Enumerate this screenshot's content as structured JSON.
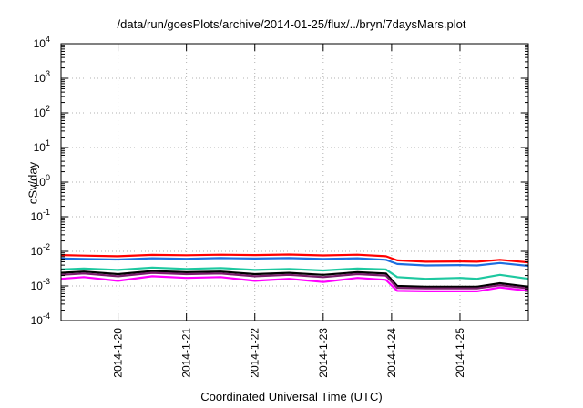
{
  "chart_data": {
    "type": "line",
    "title": "/data/run/goesPlots/archive/2014-01-25/flux/../bryn/7daysMars.plot",
    "xlabel": "Coordinated Universal Time (UTC)",
    "ylabel": "cSv/day",
    "yscale": "log",
    "ylim": [
      0.0001,
      10000
    ],
    "xlim": [
      "2014-01-19T04:00",
      "2014-01-25T23:59"
    ],
    "x_tick_labels": [
      "2014-1-20",
      "2014-1-21",
      "2014-1-22",
      "2014-1-23",
      "2014-1-24",
      "2014-1-25"
    ],
    "y_tick_labels": [
      {
        "base": "10",
        "exp": "-4"
      },
      {
        "base": "10",
        "exp": "-3"
      },
      {
        "base": "10",
        "exp": "-2"
      },
      {
        "base": "10",
        "exp": "-1"
      },
      {
        "base": "10",
        "exp": "0"
      },
      {
        "base": "10",
        "exp": "1"
      },
      {
        "base": "10",
        "exp": "2"
      },
      {
        "base": "10",
        "exp": "3"
      },
      {
        "base": "10",
        "exp": "4"
      }
    ],
    "grid": true,
    "legend": "none",
    "series": [
      {
        "color": "#ff0000",
        "x": [
          "2014-01-19T04:00",
          "2014-01-19T12:00",
          "2014-01-20T00:00",
          "2014-01-20T12:00",
          "2014-01-21T00:00",
          "2014-01-21T12:00",
          "2014-01-22T00:00",
          "2014-01-22T12:00",
          "2014-01-23T00:00",
          "2014-01-23T12:00",
          "2014-01-23T22:00",
          "2014-01-24T02:00",
          "2014-01-24T12:00",
          "2014-01-25T00:00",
          "2014-01-25T06:00",
          "2014-01-25T14:00",
          "2014-01-25T23:59"
        ],
        "values": [
          0.0078,
          0.0075,
          0.0072,
          0.0079,
          0.0077,
          0.008,
          0.0078,
          0.0081,
          0.0076,
          0.008,
          0.0072,
          0.0055,
          0.005,
          0.0051,
          0.005,
          0.0057,
          0.0048
        ]
      },
      {
        "color": "#1f6fe0",
        "x": [
          "2014-01-19T04:00",
          "2014-01-19T12:00",
          "2014-01-20T00:00",
          "2014-01-20T12:00",
          "2014-01-21T00:00",
          "2014-01-21T12:00",
          "2014-01-22T00:00",
          "2014-01-22T12:00",
          "2014-01-23T00:00",
          "2014-01-23T12:00",
          "2014-01-23T22:00",
          "2014-01-24T02:00",
          "2014-01-24T12:00",
          "2014-01-25T00:00",
          "2014-01-25T06:00",
          "2014-01-25T14:00",
          "2014-01-25T23:59"
        ],
        "values": [
          0.0062,
          0.006,
          0.0058,
          0.0063,
          0.0061,
          0.0064,
          0.0062,
          0.0064,
          0.006,
          0.0063,
          0.0057,
          0.0043,
          0.0039,
          0.004,
          0.0039,
          0.0046,
          0.0038
        ]
      },
      {
        "color": "#1ec8a0",
        "x": [
          "2014-01-19T04:00",
          "2014-01-19T12:00",
          "2014-01-20T00:00",
          "2014-01-20T12:00",
          "2014-01-21T00:00",
          "2014-01-21T12:00",
          "2014-01-22T00:00",
          "2014-01-22T12:00",
          "2014-01-23T00:00",
          "2014-01-23T12:00",
          "2014-01-23T22:00",
          "2014-01-24T02:00",
          "2014-01-24T12:00",
          "2014-01-25T00:00",
          "2014-01-25T06:00",
          "2014-01-25T14:00",
          "2014-01-25T23:59"
        ],
        "values": [
          0.003,
          0.0032,
          0.0029,
          0.0034,
          0.0031,
          0.0033,
          0.0029,
          0.0031,
          0.0028,
          0.0032,
          0.003,
          0.0018,
          0.0016,
          0.0017,
          0.0016,
          0.0021,
          0.0016
        ]
      },
      {
        "color": "#000000",
        "x": [
          "2014-01-19T04:00",
          "2014-01-19T12:00",
          "2014-01-20T00:00",
          "2014-01-20T12:00",
          "2014-01-21T00:00",
          "2014-01-21T12:00",
          "2014-01-22T00:00",
          "2014-01-22T12:00",
          "2014-01-23T00:00",
          "2014-01-23T12:00",
          "2014-01-23T22:00",
          "2014-01-24T02:00",
          "2014-01-24T12:00",
          "2014-01-25T00:00",
          "2014-01-25T06:00",
          "2014-01-25T14:00",
          "2014-01-25T23:59"
        ],
        "values": [
          0.0024,
          0.0026,
          0.0022,
          0.0027,
          0.0025,
          0.0026,
          0.0022,
          0.0024,
          0.0021,
          0.0025,
          0.0023,
          0.001,
          0.00095,
          0.00095,
          0.00095,
          0.0012,
          0.00095
        ]
      },
      {
        "color": "#7a1e6c",
        "x": [
          "2014-01-19T04:00",
          "2014-01-19T12:00",
          "2014-01-20T00:00",
          "2014-01-20T12:00",
          "2014-01-21T00:00",
          "2014-01-21T12:00",
          "2014-01-22T00:00",
          "2014-01-22T12:00",
          "2014-01-23T00:00",
          "2014-01-23T12:00",
          "2014-01-23T22:00",
          "2014-01-24T02:00",
          "2014-01-24T12:00",
          "2014-01-25T00:00",
          "2014-01-25T06:00",
          "2014-01-25T14:00",
          "2014-01-25T23:59"
        ],
        "values": [
          0.0021,
          0.0023,
          0.0019,
          0.0024,
          0.0022,
          0.0023,
          0.0019,
          0.0021,
          0.0018,
          0.0022,
          0.002,
          0.00088,
          0.00085,
          0.00085,
          0.00085,
          0.00105,
          0.00085
        ]
      },
      {
        "color": "#ff00ff",
        "x": [
          "2014-01-19T04:00",
          "2014-01-19T12:00",
          "2014-01-20T00:00",
          "2014-01-20T12:00",
          "2014-01-21T00:00",
          "2014-01-21T12:00",
          "2014-01-22T00:00",
          "2014-01-22T12:00",
          "2014-01-23T00:00",
          "2014-01-23T12:00",
          "2014-01-23T22:00",
          "2014-01-24T02:00",
          "2014-01-24T12:00",
          "2014-01-25T00:00",
          "2014-01-25T06:00",
          "2014-01-25T14:00",
          "2014-01-25T23:59"
        ],
        "values": [
          0.0016,
          0.0018,
          0.0014,
          0.0019,
          0.0017,
          0.0018,
          0.0014,
          0.0016,
          0.0013,
          0.0017,
          0.0015,
          0.00072,
          0.0007,
          0.0007,
          0.0007,
          0.0009,
          0.00072
        ]
      }
    ]
  }
}
